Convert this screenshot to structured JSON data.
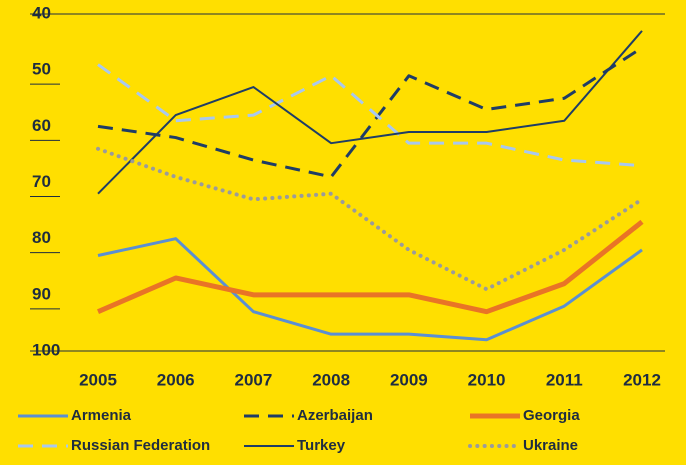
{
  "chart_data": {
    "type": "line",
    "x": [
      "2005",
      "2006",
      "2007",
      "2008",
      "2009",
      "2010",
      "2011",
      "2012"
    ],
    "ylim": [
      40,
      100
    ],
    "yticks": [
      40,
      50,
      60,
      70,
      80,
      90,
      100
    ],
    "y_inverted": true,
    "series": [
      {
        "name": "Armenia",
        "color": "#5b8fd2",
        "style": "solid",
        "width": 3,
        "values": [
          83,
          80,
          93,
          97,
          97,
          98,
          92,
          82
        ]
      },
      {
        "name": "Azerbaijan",
        "color": "#1f3d66",
        "style": "dashed",
        "width": 3,
        "values": [
          60,
          62,
          66,
          69,
          51,
          57,
          55,
          46
        ]
      },
      {
        "name": "Georgia",
        "color": "#e97426",
        "style": "solid",
        "width": 5,
        "values": [
          93,
          87,
          90,
          90,
          90,
          93,
          88,
          77
        ]
      },
      {
        "name": "Russian Federation",
        "color": "#a9c8ee",
        "style": "dashed",
        "width": 3,
        "values": [
          49,
          59,
          58,
          51,
          63,
          63,
          66,
          67
        ]
      },
      {
        "name": "Turkey",
        "color": "#1f3d66",
        "style": "solid",
        "width": 2,
        "values": [
          72,
          58,
          53,
          63,
          61,
          61,
          59,
          43
        ]
      },
      {
        "name": "Ukraine",
        "color": "#9b9b9b",
        "style": "dotted",
        "width": 4,
        "values": [
          64,
          69,
          73,
          72,
          82,
          89,
          82,
          73
        ]
      }
    ]
  }
}
